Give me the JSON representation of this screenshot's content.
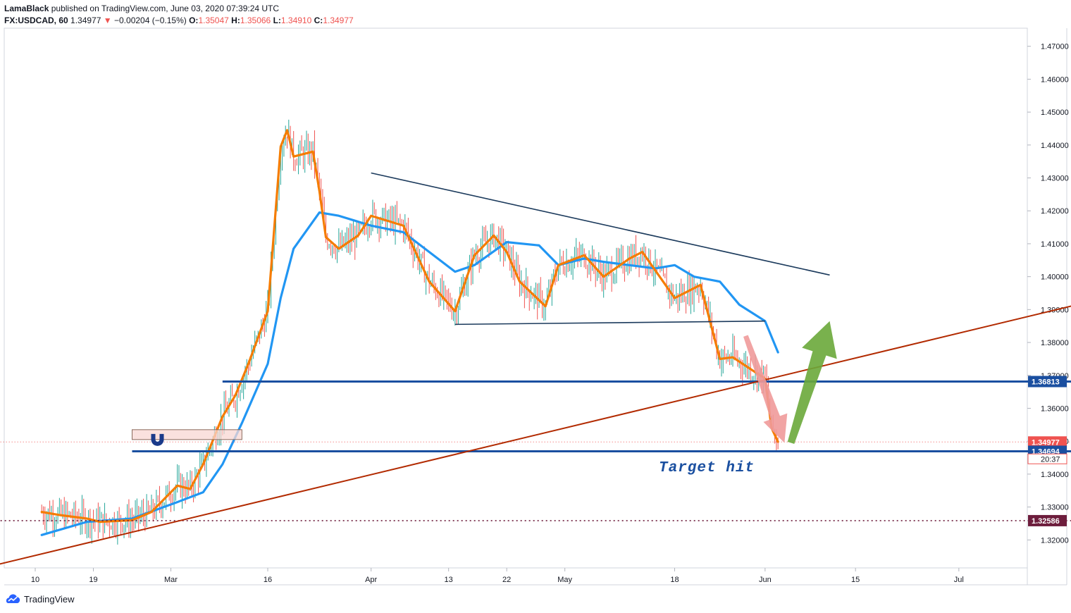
{
  "header": {
    "author": "LamaBlack",
    "published": "published on TradingView.com, June 03, 2020 07:39:24 UTC",
    "symbol": "FX:USDCAD, 60",
    "last": "1.34977",
    "change_arrow": "▼",
    "change": "−0.00204 (−0.15%)",
    "o_label": "O:",
    "o": "1.35047",
    "h_label": "H:",
    "h": "1.35066",
    "l_label": "L:",
    "l": "1.34910",
    "c_label": "C:",
    "c": "1.34977"
  },
  "footer": {
    "brand": "TradingView",
    "logo_icon": "tradingview-cloud-icon"
  },
  "colors": {
    "up": "#26a69a",
    "down": "#ef5350",
    "ema_fast": "#f57c00",
    "ema_slow": "#2196f3",
    "trend": "#1b3a5c",
    "support": "#1a4fa0",
    "rising": "#b22a00",
    "arrow_down": "#ef9a9a",
    "arrow_up": "#6aa83a",
    "target_text": "#1a4fa0"
  },
  "annotation": {
    "text": "Target hit",
    "magnet_icon": "magnet-icon"
  },
  "chart_data": {
    "type": "line",
    "instrument": "FX:USDCAD",
    "interval": "60",
    "x_tick_labels": [
      "10",
      "19",
      "Mar",
      "16",
      "Apr",
      "13",
      "22",
      "May",
      "18",
      "Jun",
      "15",
      "Jul"
    ],
    "y_tick_labels": [
      "1.47000",
      "1.46000",
      "1.45000",
      "1.44000",
      "1.43000",
      "1.42000",
      "1.41000",
      "1.40000",
      "1.39000",
      "1.38000",
      "1.37000",
      "1.36000",
      "1.35000",
      "1.34000",
      "1.33000",
      "1.32000"
    ],
    "ylim": [
      1.3115,
      1.4755
    ],
    "price_labels": [
      {
        "value": 1.36813,
        "text": "1.36813",
        "color": "#1a4fa0"
      },
      {
        "value": 1.34977,
        "text": "1.34977",
        "color": "#ef5350"
      },
      {
        "value": 1.34694,
        "text": "1.34694",
        "color": "#1a4fa0"
      },
      {
        "value": 1.32586,
        "text": "1.32586",
        "color": "#6d1d3c"
      }
    ],
    "countdown": "20:37",
    "series": [
      {
        "name": "",
        "x": [
          "Feb 10",
          "Feb 13",
          "Feb 17",
          "Feb 19",
          "Feb 24",
          "Feb 27",
          "Mar 2",
          "Mar 4",
          "Mar 6",
          "Mar 9",
          "Mar 11",
          "Mar 13",
          "Mar 16",
          "Mar 17",
          "Mar 18",
          "Mar 19",
          "Mar 20",
          "Mar 23",
          "Mar 24",
          "Mar 25",
          "Mar 27",
          "Mar 30",
          "Apr 1",
          "Apr 6",
          "Apr 10",
          "Apr 14",
          "Apr 17",
          "Apr 20",
          "Apr 22",
          "Apr 24",
          "Apr 28",
          "Apr 30",
          "May 4",
          "May 7",
          "May 11",
          "May 13",
          "May 18",
          "May 20",
          "May 22",
          "May 25",
          "May 27",
          "Jun 1",
          "Jun 2",
          "Jun 3"
        ],
        "values": [
          1.3285,
          1.3275,
          1.3265,
          1.3255,
          1.326,
          1.3285,
          1.3365,
          1.3355,
          1.343,
          1.3575,
          1.364,
          1.3735,
          1.3895,
          1.4145,
          1.4395,
          1.4445,
          1.4365,
          1.438,
          1.426,
          1.412,
          1.4085,
          1.4125,
          1.4185,
          1.4155,
          1.3985,
          1.3895,
          1.4065,
          1.4125,
          1.4075,
          1.3985,
          1.391,
          1.4035,
          1.4065,
          1.4,
          1.4055,
          1.4075,
          1.3935,
          1.3955,
          1.3975,
          1.375,
          1.3755,
          1.369,
          1.354,
          1.3498
        ]
      },
      {
        "name": "",
        "x": [
          "Feb 10",
          "Feb 17",
          "Feb 24",
          "Mar 2",
          "Mar 6",
          "Mar 9",
          "Mar 12",
          "Mar 16",
          "Mar 18",
          "Mar 20",
          "Mar 24",
          "Mar 27",
          "Apr 1",
          "Apr 6",
          "Apr 10",
          "Apr 14",
          "Apr 17",
          "Apr 22",
          "Apr 27",
          "Apr 30",
          "May 4",
          "May 7",
          "May 11",
          "May 15",
          "May 18",
          "May 21",
          "May 25",
          "May 28",
          "Jun 1",
          "Jun 3"
        ],
        "values": [
          1.3215,
          1.3255,
          1.3265,
          1.3315,
          1.3345,
          1.343,
          1.3555,
          1.3735,
          1.3935,
          1.4085,
          1.4195,
          1.4185,
          1.4155,
          1.4135,
          1.4075,
          1.4015,
          1.4035,
          1.4105,
          1.4095,
          1.4035,
          1.4055,
          1.4045,
          1.4035,
          1.4025,
          1.4035,
          1.4,
          1.3985,
          1.3915,
          1.3865,
          1.377
        ]
      }
    ],
    "drawings": [
      {
        "kind": "trendline",
        "from": [
          "Apr 1",
          1.4315
        ],
        "to": [
          "Jun 11",
          1.4005
        ]
      },
      {
        "kind": "horizontal",
        "from": [
          "Apr 14",
          1.3855
        ],
        "to": [
          "Jun 1",
          1.3865
        ]
      },
      {
        "kind": "horizontal",
        "from": [
          "Mar 9",
          1.36813
        ],
        "to": [
          "Jul 31",
          1.36813
        ]
      },
      {
        "kind": "horizontal",
        "from": [
          "Feb 24",
          1.34694
        ],
        "to": [
          "Jul 31",
          1.34694
        ]
      },
      {
        "kind": "dotted",
        "from": [
          "Feb 1",
          1.32586
        ],
        "to": [
          "Jul 31",
          1.32586
        ]
      },
      {
        "kind": "dotted",
        "from": [
          "Feb 1",
          1.34977
        ],
        "to": [
          "Jul 31",
          1.34977
        ]
      },
      {
        "kind": "trendline",
        "from": [
          "Feb 1",
          1.3115
        ],
        "to": [
          "Jul 31",
          1.397
        ]
      },
      {
        "kind": "arrow",
        "from": [
          "May 29",
          1.382
        ],
        "to": [
          "Jun 4",
          1.3495
        ]
      },
      {
        "kind": "arrow",
        "from": [
          "Jun 5",
          1.3495
        ],
        "to": [
          "Jun 11",
          1.3865
        ]
      },
      {
        "kind": "rectangle",
        "from": [
          "Feb 24",
          1.3535
        ],
        "to": [
          "Mar 12",
          1.3505
        ]
      }
    ]
  }
}
